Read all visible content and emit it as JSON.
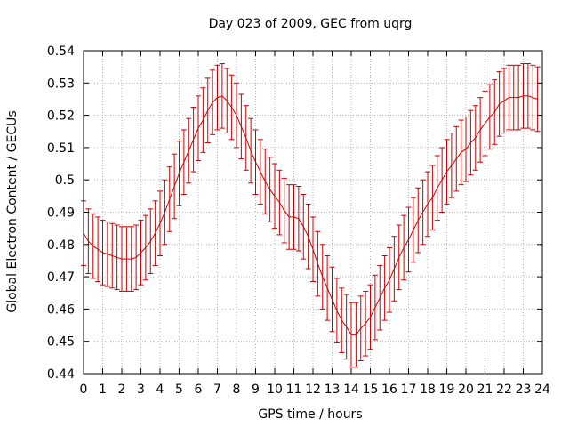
{
  "chart_data": {
    "type": "line",
    "title": "Day 023 of 2009, GEC from uqrg",
    "xlabel": "GPS time / hours",
    "ylabel": "Global Electron Content / GECUs",
    "xlim": [
      0,
      24
    ],
    "ylim": [
      0.44,
      0.54
    ],
    "xticks": [
      "0",
      "1",
      "2",
      "3",
      "4",
      "5",
      "6",
      "7",
      "8",
      "9",
      "10",
      "11",
      "12",
      "13",
      "14",
      "15",
      "16",
      "17",
      "18",
      "19",
      "20",
      "21",
      "22",
      "23",
      "24"
    ],
    "yticks": [
      "0.44",
      "0.45",
      "0.46",
      "0.47",
      "0.48",
      "0.49",
      "0.5",
      "0.51",
      "0.52",
      "0.53",
      "0.54"
    ],
    "grid": true,
    "error_half_width": 0.01,
    "series_color": "#cc0000",
    "x": [
      0,
      0.25,
      0.5,
      0.75,
      1,
      1.25,
      1.5,
      1.75,
      2,
      2.25,
      2.5,
      2.75,
      3,
      3.25,
      3.5,
      3.75,
      4,
      4.25,
      4.5,
      4.75,
      5,
      5.25,
      5.5,
      5.75,
      6,
      6.25,
      6.5,
      6.75,
      7,
      7.25,
      7.5,
      7.75,
      8,
      8.25,
      8.5,
      8.75,
      9,
      9.25,
      9.5,
      9.75,
      10,
      10.25,
      10.5,
      10.75,
      11,
      11.25,
      11.5,
      11.75,
      12,
      12.25,
      12.5,
      12.75,
      13,
      13.25,
      13.5,
      13.75,
      14,
      14.25,
      14.5,
      14.75,
      15,
      15.25,
      15.5,
      15.75,
      16,
      16.25,
      16.5,
      16.75,
      17,
      17.25,
      17.5,
      17.75,
      18,
      18.25,
      18.5,
      18.75,
      19,
      19.25,
      19.5,
      19.75,
      20,
      20.25,
      20.5,
      20.75,
      21,
      21.25,
      21.5,
      21.75,
      22,
      22.25,
      22.5,
      22.75,
      23,
      23.25,
      23.5,
      23.75
    ],
    "y": [
      0.4835,
      0.481,
      0.4795,
      0.4785,
      0.4775,
      0.477,
      0.4765,
      0.476,
      0.4755,
      0.4755,
      0.4755,
      0.476,
      0.4775,
      0.479,
      0.481,
      0.4835,
      0.4865,
      0.49,
      0.494,
      0.498,
      0.502,
      0.5055,
      0.509,
      0.5125,
      0.516,
      0.5185,
      0.5215,
      0.524,
      0.5255,
      0.526,
      0.5245,
      0.5225,
      0.52,
      0.5165,
      0.513,
      0.509,
      0.5055,
      0.5025,
      0.4995,
      0.497,
      0.495,
      0.493,
      0.4905,
      0.4885,
      0.4885,
      0.488,
      0.4855,
      0.4825,
      0.4785,
      0.474,
      0.47,
      0.4665,
      0.463,
      0.4595,
      0.4565,
      0.4545,
      0.452,
      0.452,
      0.454,
      0.4555,
      0.4575,
      0.4605,
      0.4635,
      0.4665,
      0.469,
      0.4725,
      0.476,
      0.479,
      0.4815,
      0.4845,
      0.4875,
      0.49,
      0.4925,
      0.4945,
      0.4975,
      0.5,
      0.5025,
      0.5045,
      0.5065,
      0.5085,
      0.5095,
      0.5115,
      0.513,
      0.5155,
      0.5175,
      0.5195,
      0.521,
      0.5235,
      0.5245,
      0.5255,
      0.5255,
      0.5255,
      0.526,
      0.526,
      0.5255,
      0.525
    ]
  }
}
